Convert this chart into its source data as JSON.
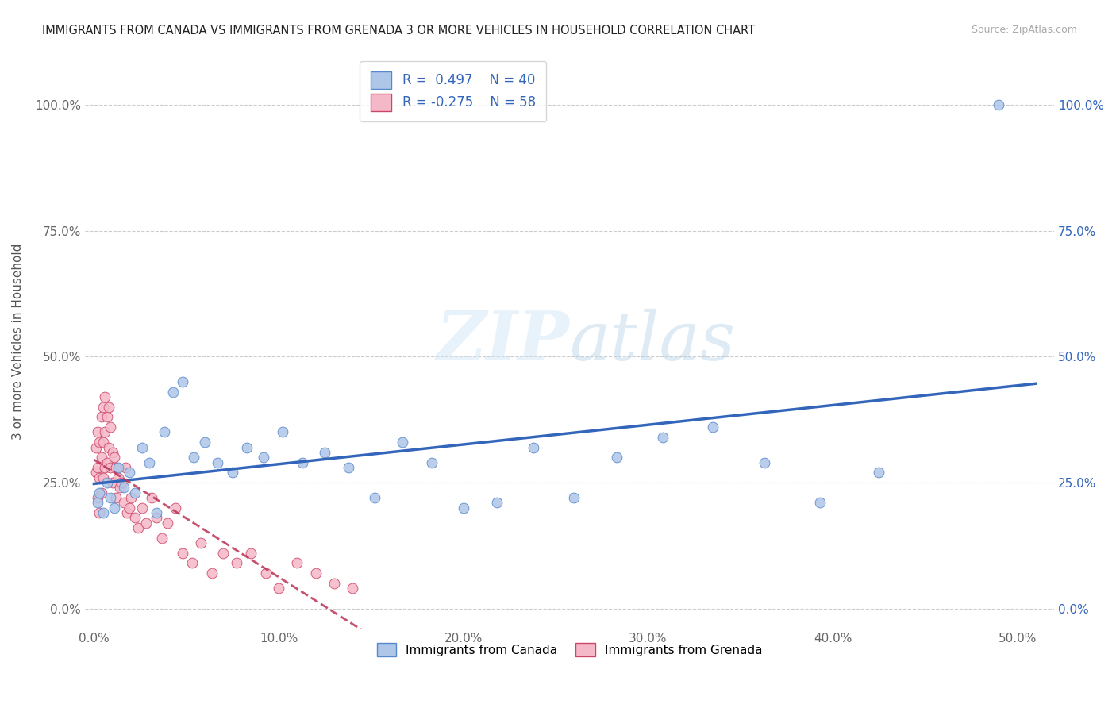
{
  "title": "IMMIGRANTS FROM CANADA VS IMMIGRANTS FROM GRENADA 3 OR MORE VEHICLES IN HOUSEHOLD CORRELATION CHART",
  "source": "Source: ZipAtlas.com",
  "ylabel": "3 or more Vehicles in Household",
  "xlim": [
    -0.005,
    0.52
  ],
  "ylim": [
    -0.04,
    1.1
  ],
  "x_tick_labels": [
    "0.0%",
    "10.0%",
    "20.0%",
    "30.0%",
    "40.0%",
    "50.0%"
  ],
  "x_tick_vals": [
    0.0,
    0.1,
    0.2,
    0.3,
    0.4,
    0.5
  ],
  "y_tick_labels": [
    "0.0%",
    "25.0%",
    "50.0%",
    "75.0%",
    "100.0%"
  ],
  "y_tick_vals": [
    0.0,
    0.25,
    0.5,
    0.75,
    1.0
  ],
  "canada_R": 0.497,
  "canada_N": 40,
  "grenada_R": -0.275,
  "grenada_N": 58,
  "canada_color": "#aec6e8",
  "grenada_color": "#f5b8c8",
  "canada_edge_color": "#5588cc",
  "grenada_edge_color": "#cc4466",
  "canada_line_color": "#3366bb",
  "grenada_line_color": "#bb3355",
  "watermark_zip": "ZIP",
  "watermark_atlas": "atlas",
  "canada_x": [
    0.002,
    0.003,
    0.005,
    0.007,
    0.009,
    0.011,
    0.013,
    0.016,
    0.019,
    0.022,
    0.026,
    0.03,
    0.034,
    0.038,
    0.043,
    0.048,
    0.054,
    0.06,
    0.067,
    0.075,
    0.083,
    0.092,
    0.102,
    0.113,
    0.125,
    0.138,
    0.152,
    0.167,
    0.183,
    0.2,
    0.218,
    0.238,
    0.26,
    0.283,
    0.308,
    0.335,
    0.363,
    0.393,
    0.425,
    0.49
  ],
  "canada_y": [
    0.21,
    0.23,
    0.19,
    0.25,
    0.22,
    0.2,
    0.28,
    0.24,
    0.27,
    0.23,
    0.32,
    0.29,
    0.19,
    0.35,
    0.43,
    0.45,
    0.3,
    0.33,
    0.29,
    0.27,
    0.32,
    0.3,
    0.35,
    0.29,
    0.31,
    0.28,
    0.22,
    0.33,
    0.29,
    0.2,
    0.21,
    0.32,
    0.22,
    0.3,
    0.34,
    0.36,
    0.29,
    0.21,
    0.27,
    1.0
  ],
  "grenada_x": [
    0.001,
    0.001,
    0.002,
    0.002,
    0.002,
    0.003,
    0.003,
    0.003,
    0.004,
    0.004,
    0.004,
    0.005,
    0.005,
    0.005,
    0.006,
    0.006,
    0.006,
    0.007,
    0.007,
    0.008,
    0.008,
    0.009,
    0.009,
    0.01,
    0.01,
    0.011,
    0.012,
    0.012,
    0.013,
    0.014,
    0.015,
    0.016,
    0.017,
    0.018,
    0.019,
    0.02,
    0.022,
    0.024,
    0.026,
    0.028,
    0.031,
    0.034,
    0.037,
    0.04,
    0.044,
    0.048,
    0.053,
    0.058,
    0.064,
    0.07,
    0.077,
    0.085,
    0.093,
    0.1,
    0.11,
    0.12,
    0.13,
    0.14
  ],
  "grenada_y": [
    0.27,
    0.32,
    0.28,
    0.35,
    0.22,
    0.33,
    0.26,
    0.19,
    0.38,
    0.3,
    0.23,
    0.4,
    0.33,
    0.26,
    0.42,
    0.35,
    0.28,
    0.38,
    0.29,
    0.4,
    0.32,
    0.36,
    0.28,
    0.31,
    0.25,
    0.3,
    0.28,
    0.22,
    0.26,
    0.24,
    0.25,
    0.21,
    0.28,
    0.19,
    0.2,
    0.22,
    0.18,
    0.16,
    0.2,
    0.17,
    0.22,
    0.18,
    0.14,
    0.17,
    0.2,
    0.11,
    0.09,
    0.13,
    0.07,
    0.11,
    0.09,
    0.11,
    0.07,
    0.04,
    0.09,
    0.07,
    0.05,
    0.04
  ]
}
